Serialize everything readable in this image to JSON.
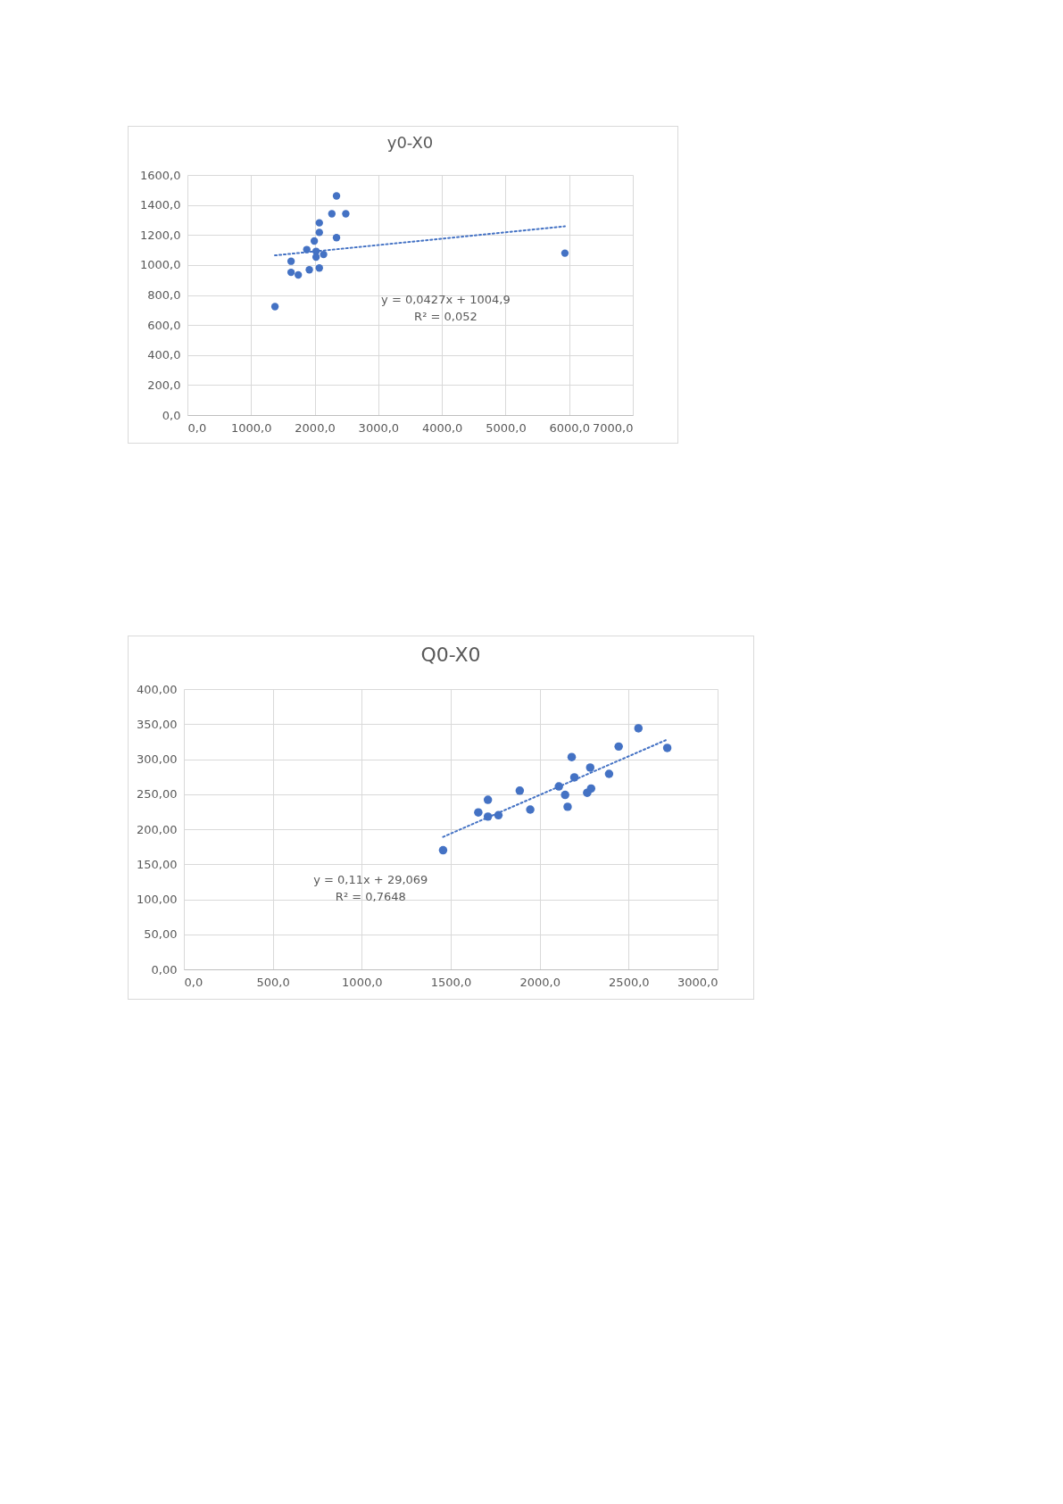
{
  "chart_data": [
    {
      "type": "scatter",
      "title": "y0-X0",
      "grid": true,
      "marker": "circle",
      "xlim": [
        0,
        7000
      ],
      "xticks": [
        {
          "value": 0,
          "label": "0,0"
        },
        {
          "value": 1000,
          "label": "1000,0"
        },
        {
          "value": 2000,
          "label": "2000,0"
        },
        {
          "value": 3000,
          "label": "3000,0"
        },
        {
          "value": 4000,
          "label": "4000,0"
        },
        {
          "value": 5000,
          "label": "5000,0"
        },
        {
          "value": 6000,
          "label": "6000,0"
        },
        {
          "value": 7000,
          "label": "7000,0"
        }
      ],
      "ylim": [
        0,
        1600
      ],
      "yticks": [
        {
          "value": 0,
          "label": "0,0"
        },
        {
          "value": 200,
          "label": "200,0"
        },
        {
          "value": 400,
          "label": "400,0"
        },
        {
          "value": 600,
          "label": "600,0"
        },
        {
          "value": 800,
          "label": "800,0"
        },
        {
          "value": 1000,
          "label": "1000,0"
        },
        {
          "value": 1200,
          "label": "1200,0"
        },
        {
          "value": 1400,
          "label": "1400,0"
        },
        {
          "value": 1600,
          "label": "1600,0"
        }
      ],
      "series": [
        {
          "color": "#4472c4",
          "x": [
            1376,
            1629,
            1629,
            1708,
            1742,
            1876,
            1916,
            1994,
            2022,
            2022,
            2073,
            2073,
            2073,
            2140,
            2270,
            2343,
            2343,
            2489,
            5933
          ],
          "values": [
            723,
            1025,
            951,
            null,
            934,
            1103,
            968,
            1160,
            1091,
            1053,
            1281,
            1217,
            980,
            1070,
            1341,
            1460,
            1182,
            1341,
            1079
          ]
        },
        {
          "type": "line",
          "color": "#4472c4",
          "line_style": "dotted",
          "marker": "none",
          "x": [
            1376,
            5933
          ],
          "values": [
            1064,
            1258
          ]
        }
      ],
      "annotations": [
        "y = 0,0427x + 1004,9",
        "R² = 0,052"
      ]
    },
    {
      "type": "scatter",
      "title": "Q0-X0",
      "grid": true,
      "marker": "circle",
      "xlim": [
        0,
        3000
      ],
      "xticks": [
        {
          "value": 0,
          "label": "0,0"
        },
        {
          "value": 500,
          "label": "500,0"
        },
        {
          "value": 1000,
          "label": "1000,0"
        },
        {
          "value": 1500,
          "label": "1500,0"
        },
        {
          "value": 2000,
          "label": "2000,0"
        },
        {
          "value": 2500,
          "label": "2500,0"
        },
        {
          "value": 3000,
          "label": "3000,0"
        }
      ],
      "ylim": [
        0,
        400
      ],
      "yticks": [
        {
          "value": 0,
          "label": "0,00"
        },
        {
          "value": 50,
          "label": "50,00"
        },
        {
          "value": 100,
          "label": "100,00"
        },
        {
          "value": 150,
          "label": "150,00"
        },
        {
          "value": 200,
          "label": "200,00"
        },
        {
          "value": 250,
          "label": "250,00"
        },
        {
          "value": 300,
          "label": "300,00"
        },
        {
          "value": 350,
          "label": "350,00"
        },
        {
          "value": 400,
          "label": "400,00"
        }
      ],
      "series": [
        {
          "color": "#4472c4",
          "x": [
            1457,
            1655,
            1709,
            1709,
            1768,
            1888,
            1947,
            2096,
            2108,
            2143,
            2157,
            2180,
            2195,
            2267,
            2284,
            2289,
            2390,
            2444,
            2555,
            2717
          ],
          "values": [
            170,
            224,
            242,
            218,
            220,
            255,
            228,
            null,
            261,
            249,
            232,
            303,
            274,
            252,
            288,
            258,
            279,
            318,
            344,
            316
          ]
        },
        {
          "type": "line",
          "color": "#4472c4",
          "line_style": "dotted",
          "marker": "none",
          "x": [
            1457,
            2717
          ],
          "values": [
            189,
            328
          ]
        }
      ],
      "annotations": [
        "y = 0,11x + 29,069",
        "R² = 0,7648"
      ]
    }
  ]
}
